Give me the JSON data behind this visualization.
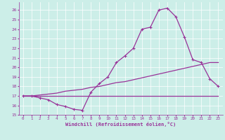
{
  "bg_color": "#cceee8",
  "line_color": "#993399",
  "xlabel": "Windchill (Refroidissement éolien,°C)",
  "xlim": [
    -0.5,
    23.5
  ],
  "ylim": [
    15,
    26.8
  ],
  "xticks": [
    0,
    1,
    2,
    3,
    4,
    5,
    6,
    7,
    8,
    9,
    10,
    11,
    12,
    13,
    14,
    15,
    16,
    17,
    18,
    19,
    20,
    21,
    22,
    23
  ],
  "yticks": [
    15,
    16,
    17,
    18,
    19,
    20,
    21,
    22,
    23,
    24,
    25,
    26
  ],
  "series": [
    {
      "x": [
        0,
        1,
        2,
        3,
        4,
        5,
        6,
        7,
        8,
        9,
        10,
        11,
        12,
        13,
        14,
        15,
        16,
        17,
        18,
        19,
        20,
        21,
        22,
        23
      ],
      "y": [
        17,
        17,
        17,
        17,
        17,
        17,
        17,
        17,
        17,
        17,
        17,
        17,
        17,
        17,
        17,
        17,
        17,
        17,
        17,
        17,
        17,
        17,
        17,
        17
      ],
      "marker": false,
      "lw": 0.9
    },
    {
      "x": [
        0,
        1,
        2,
        3,
        4,
        5,
        6,
        7,
        8,
        9,
        10,
        11,
        12,
        13,
        14,
        15,
        16,
        17,
        18,
        19,
        20,
        21,
        22,
        23
      ],
      "y": [
        17,
        17,
        17.1,
        17.2,
        17.3,
        17.5,
        17.6,
        17.7,
        17.9,
        18.0,
        18.2,
        18.4,
        18.5,
        18.7,
        18.9,
        19.1,
        19.3,
        19.5,
        19.7,
        19.9,
        20.1,
        20.3,
        20.5,
        20.5
      ],
      "marker": false,
      "lw": 0.9
    },
    {
      "x": [
        0,
        1,
        2,
        3,
        4,
        5,
        6,
        7,
        8,
        9,
        10,
        11,
        12,
        13,
        14,
        15,
        16,
        17,
        18,
        19,
        20,
        21,
        22,
        23
      ],
      "y": [
        17.0,
        17.0,
        16.8,
        16.6,
        16.1,
        15.9,
        15.6,
        15.5,
        17.4,
        18.3,
        19.0,
        20.5,
        21.2,
        22.0,
        24.0,
        24.2,
        26.0,
        26.2,
        25.3,
        23.2,
        20.8,
        20.5,
        18.8,
        18.0
      ],
      "marker": true,
      "lw": 0.9
    }
  ]
}
